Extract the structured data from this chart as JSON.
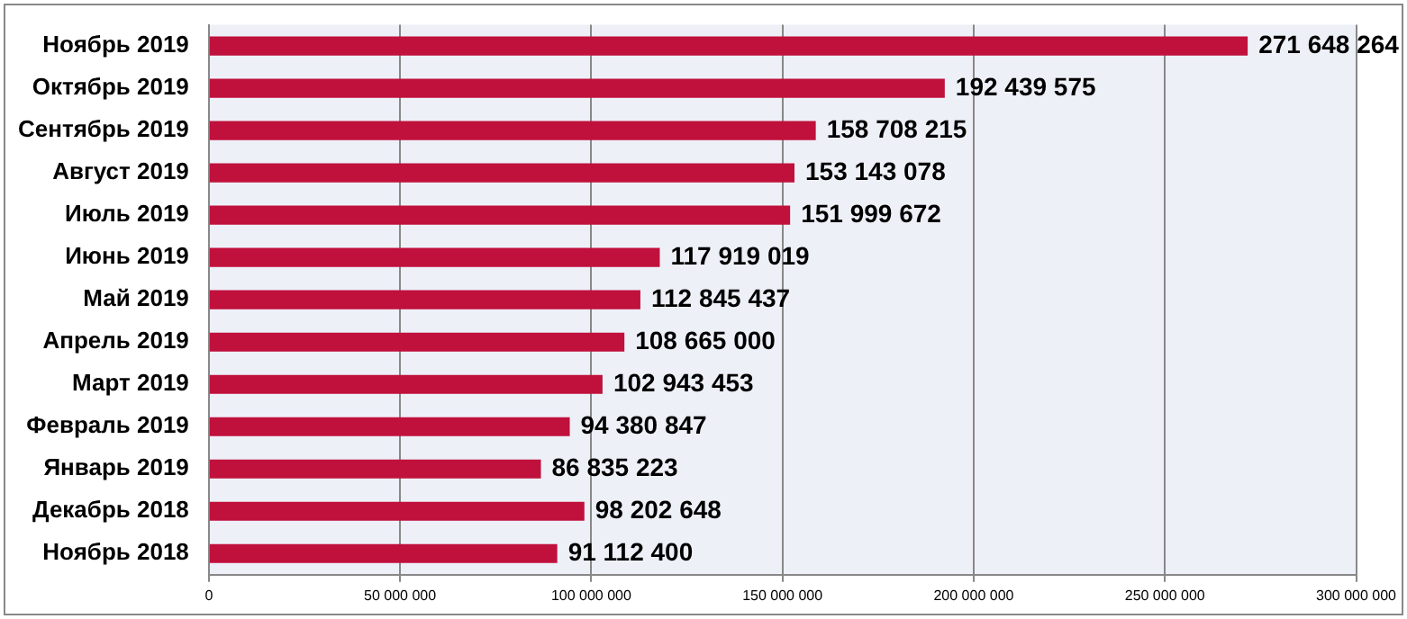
{
  "chart_data": {
    "type": "bar",
    "orientation": "horizontal",
    "categories": [
      "Ноябрь 2019",
      "Октябрь 2019",
      "Сентябрь 2019",
      "Август 2019",
      "Июль 2019",
      "Июнь 2019",
      "Май 2019",
      "Апрель 2019",
      "Март 2019",
      "Февраль 2019",
      "Январь 2019",
      "Декабрь 2018",
      "Ноябрь 2018"
    ],
    "values": [
      271648264,
      192439575,
      158708215,
      153143078,
      151999672,
      117919019,
      112845437,
      108665000,
      102943453,
      94380847,
      86835223,
      98202648,
      91112400
    ],
    "value_labels": [
      "271 648 264",
      "192 439 575",
      "158 708 215",
      "153 143 078",
      "151 999 672",
      "117 919 019",
      "112 845 437",
      "108 665 000",
      "102 943 453",
      "94 380 847",
      "86 835 223",
      "98 202 648",
      "91 112 400"
    ],
    "color": "#c0103c",
    "xlim": [
      0,
      300000000
    ],
    "xticks": [
      0,
      {
        "value": 50000000,
        "label": "50 000 000"
      },
      {
        "value": 100000000,
        "label": "100 000 000"
      },
      {
        "value": 150000000,
        "label": "150 000 000"
      },
      {
        "value": 200000000,
        "label": "200 000 000"
      },
      {
        "value": 250000000,
        "label": "250 000 000"
      },
      {
        "value": 300000000,
        "label": "300 000 000"
      }
    ],
    "grid": "x",
    "legend": false
  }
}
